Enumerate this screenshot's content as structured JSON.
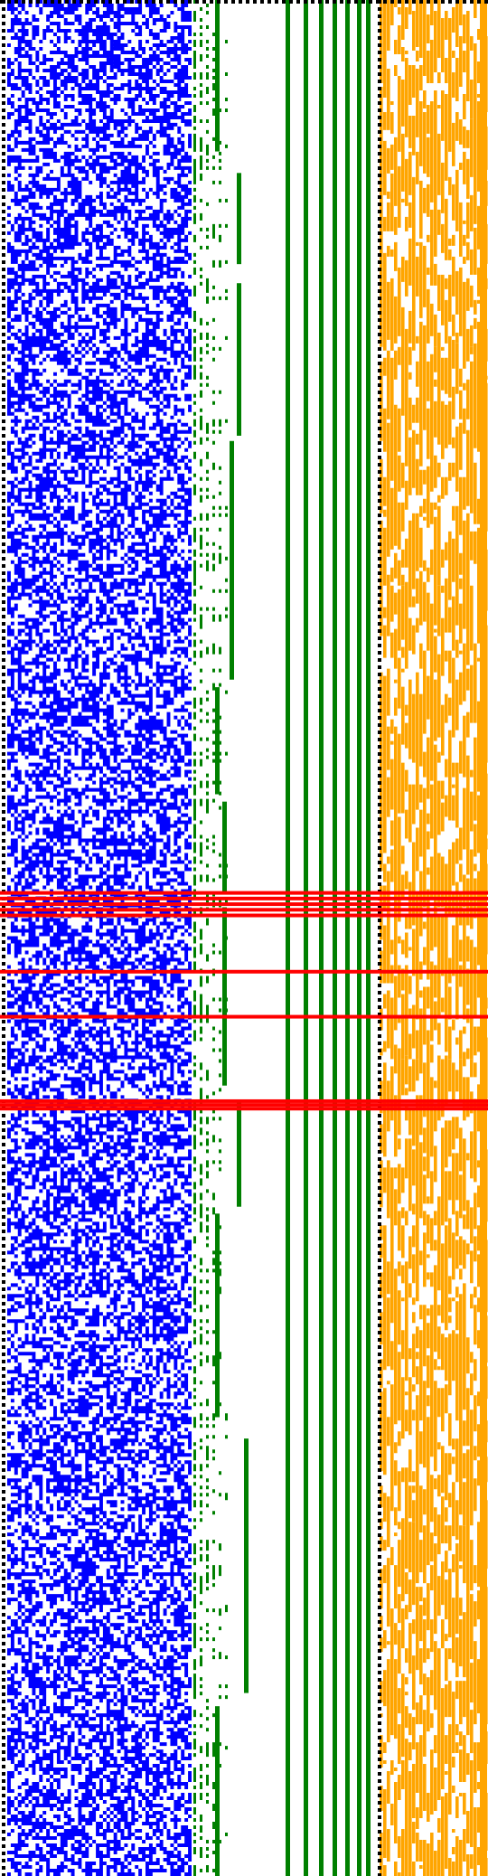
{
  "diagram": {
    "type": "pixel-raster-visualization",
    "title": "",
    "panels": [
      {
        "name": "random-bits",
        "color": "#0000ff",
        "style": "random-noise",
        "density": 0.55,
        "seed": 11
      },
      {
        "name": "tree-structure",
        "color": "#008000",
        "style": "branching-tree",
        "vertical_lines": 9,
        "seed": 23
      },
      {
        "name": "sparse-bits",
        "color": "#ffa500",
        "style": "vertical-runs",
        "density": 0.6,
        "seed": 37
      }
    ],
    "separators": {
      "color": "#000000",
      "style": "dotted",
      "count": 2
    },
    "highlight": {
      "color": "#ff0000",
      "rows": [
        0.475,
        0.478,
        0.481,
        0.484,
        0.487,
        0.517,
        0.541,
        0.586,
        0.588,
        0.59
      ]
    },
    "grid_rows": 519
  }
}
